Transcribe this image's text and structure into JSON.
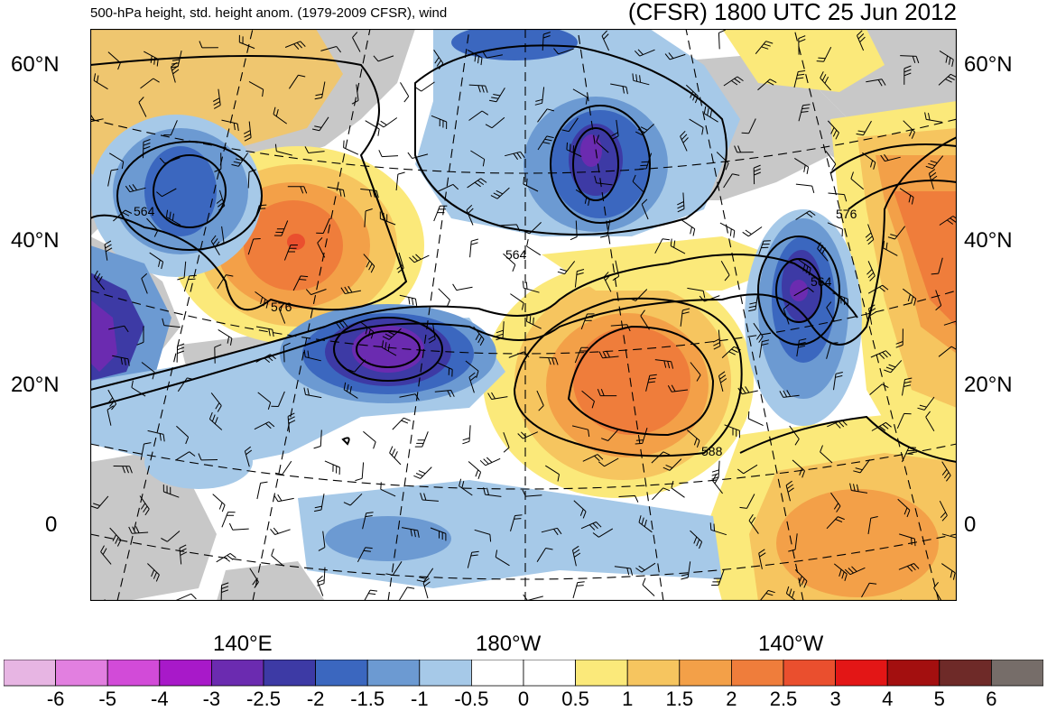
{
  "header": {
    "subtitle": "500-hPa height, std. height anom. (1979-2009 CFSR), wind",
    "title": "(CFSR) 1800 UTC 25 Jun 2012"
  },
  "axes": {
    "lat_labels": [
      "60°N",
      "40°N",
      "20°N",
      "0"
    ],
    "lon_labels": [
      "140°E",
      "180°W",
      "140°W"
    ]
  },
  "contour_labels": [
    "564",
    "576",
    "564",
    "564",
    "576",
    "588"
  ],
  "colorbar": {
    "labels": [
      "-6",
      "-5",
      "-4",
      "-3",
      "-2.5",
      "-2",
      "-1.5",
      "-1",
      "-0.5",
      "0",
      "0.5",
      "1",
      "1.5",
      "2",
      "2.5",
      "3",
      "4",
      "5",
      "6"
    ],
    "colors": [
      "#e7b5e3",
      "#e27fe0",
      "#d24bd8",
      "#a819c9",
      "#6b2bb0",
      "#3d3aa5",
      "#3b67bf",
      "#6c9ad2",
      "#a6c9e8",
      "#ffffff",
      "#ffffff",
      "#fbe97a",
      "#f6c55f",
      "#f3a048",
      "#ef7d3b",
      "#ea4f2e",
      "#e31616",
      "#a30f0f",
      "#6e2a28",
      "#766d69"
    ]
  },
  "colors": {
    "land": "#c8c8c8",
    "ocean": "#ffffff"
  }
}
